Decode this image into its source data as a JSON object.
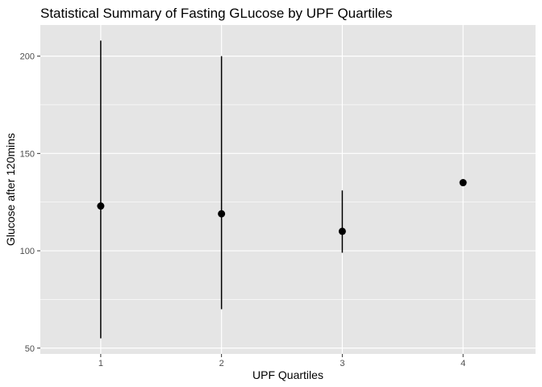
{
  "chart_data": {
    "type": "scatter",
    "title": "Statistical Summary of Fasting GLucose by UPF Quartiles",
    "xlabel": "UPF Quartiles",
    "ylabel": "Glucose after 120mins",
    "x": [
      1,
      2,
      3,
      4
    ],
    "xticks": [
      "1",
      "2",
      "3",
      "4"
    ],
    "yticks": [
      "50",
      "100",
      "150",
      "200"
    ],
    "xlim": [
      0.5,
      4.6
    ],
    "ylim": [
      47,
      216
    ],
    "grid": true,
    "series": [
      {
        "values": [
          123,
          119,
          110,
          135
        ],
        "lower": [
          55,
          70,
          99,
          135
        ],
        "upper": [
          208,
          200,
          131,
          135
        ]
      }
    ],
    "colors": {
      "panel": "#e5e5e5",
      "grid": "#ffffff",
      "marks": "#000000",
      "tick_text": "#4d4d4d"
    }
  }
}
